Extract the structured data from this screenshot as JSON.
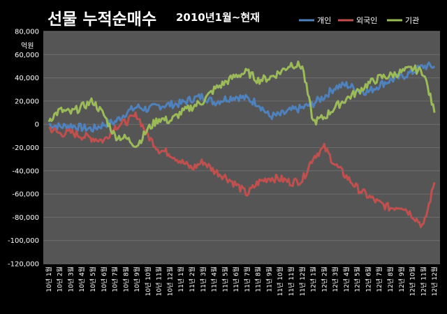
{
  "title": "선물 누적순매수",
  "subtitle": "2010년1월~현재",
  "colors": {
    "background": "#000000",
    "plot_bg": "#555555",
    "grid": "#6e6e6e",
    "individual": "#4f81bd",
    "foreign": "#c0504d",
    "institution": "#9bbb59"
  },
  "chart_data": {
    "type": "line",
    "title": "선물 누적순매수",
    "subtitle": "2010년1월~현재",
    "ylabel": "억원",
    "ylim": [
      -120000,
      80000
    ],
    "yticks": [
      "80,000",
      "60,000",
      "40,000",
      "20,000",
      "0",
      "-20,000",
      "-40,000",
      "-60,000",
      "-80,000",
      "-100,000",
      "-120,000"
    ],
    "grid": true,
    "legend": "top-right",
    "categories": [
      "10년 1월",
      "10년 2월",
      "10년 3월",
      "10년 4월",
      "10년 5월",
      "10년 6월",
      "10년 7월",
      "10년 8월",
      "10년 9월",
      "10년 10월",
      "10년 11월",
      "10년 12월",
      "11년 1월",
      "11년 2월",
      "11년 3월",
      "11년 4월",
      "11년 5월",
      "11년 6월",
      "11년 7월",
      "11년 8월",
      "11년 9월",
      "11년 10월",
      "11년 11월",
      "11년 12월",
      "12년 1월",
      "12년 2월",
      "12년 3월",
      "12년 4월",
      "12년 5월",
      "12년 6월",
      "12년 7월",
      "12년 8월",
      "12년 9월",
      "12년 10월",
      "12년 11월",
      "12년 12월"
    ],
    "series": [
      {
        "name": "개인",
        "color": "#4f81bd",
        "values": [
          0,
          -2000,
          -1000,
          -3000,
          -4000,
          0,
          2000,
          10000,
          15000,
          13000,
          16000,
          17000,
          18000,
          22000,
          24000,
          19000,
          22000,
          24000,
          22000,
          18000,
          7000,
          8000,
          12000,
          14000,
          18000,
          24000,
          32000,
          34000,
          30000,
          28000,
          34000,
          38000,
          41000,
          45000,
          50000,
          50000
        ]
      },
      {
        "name": "외국인",
        "color": "#c0504d",
        "values": [
          -3000,
          -8000,
          -7000,
          -10000,
          -12000,
          -14000,
          -2000,
          2000,
          8000,
          -10000,
          -22000,
          -25000,
          -32000,
          -38000,
          -32000,
          -40000,
          -45000,
          -52000,
          -60000,
          -50000,
          -46000,
          -47000,
          -50000,
          -48000,
          -28000,
          -20000,
          -35000,
          -45000,
          -55000,
          -62000,
          -68000,
          -72000,
          -70000,
          -78000,
          -88000,
          -50000
        ]
      },
      {
        "name": "기관",
        "color": "#9bbb59",
        "values": [
          4000,
          12000,
          10000,
          15000,
          20000,
          8000,
          -10000,
          -12000,
          -18000,
          -4000,
          5000,
          3000,
          10000,
          15000,
          20000,
          30000,
          36000,
          42000,
          45000,
          38000,
          40000,
          45000,
          52000,
          50000,
          2000,
          6000,
          15000,
          22000,
          28000,
          35000,
          40000,
          42000,
          45000,
          48000,
          45000,
          10000
        ]
      }
    ]
  }
}
